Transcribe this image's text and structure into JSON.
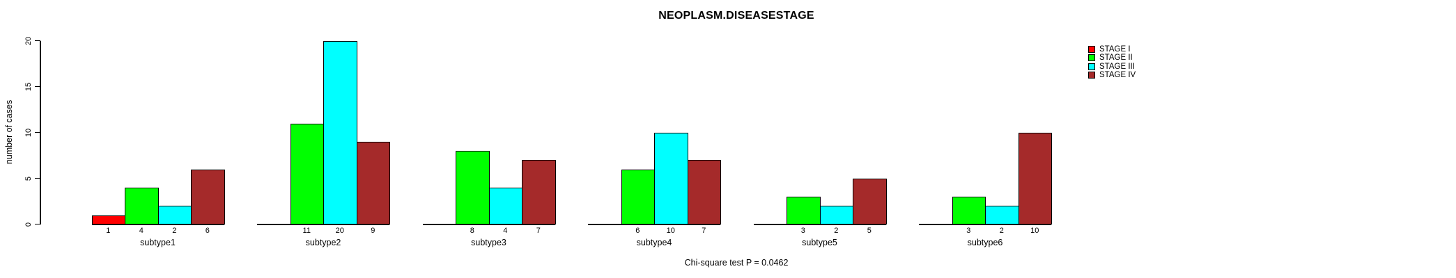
{
  "title": "NEOPLASM.DISEASESTAGE",
  "caption": "Chi-square test P = 0.0462",
  "ylabel": "number of cases",
  "legend": {
    "position": "top-right",
    "items": [
      {
        "label": "STAGE I",
        "color": "#FF0000"
      },
      {
        "label": "STAGE II",
        "color": "#00FF00"
      },
      {
        "label": "STAGE III",
        "color": "#00FFFF"
      },
      {
        "label": "STAGE IV",
        "color": "#A52A2A"
      }
    ]
  },
  "chart_data": {
    "type": "bar",
    "title": "NEOPLASM.DISEASESTAGE",
    "ylabel": "number of cases",
    "xlabel": "",
    "ylim": [
      0,
      20
    ],
    "yticks": [
      0,
      5,
      10,
      15,
      20
    ],
    "grid": false,
    "legend_position": "top-right",
    "categories": [
      "subtype1",
      "subtype2",
      "subtype3",
      "subtype4",
      "subtype5",
      "subtype6"
    ],
    "series": [
      {
        "name": "STAGE I",
        "color": "#FF0000",
        "values": [
          1,
          0,
          0,
          0,
          0,
          0
        ]
      },
      {
        "name": "STAGE II",
        "color": "#00FF00",
        "values": [
          4,
          11,
          8,
          6,
          3,
          3
        ]
      },
      {
        "name": "STAGE III",
        "color": "#00FFFF",
        "values": [
          2,
          20,
          4,
          10,
          2,
          2
        ]
      },
      {
        "name": "STAGE IV",
        "color": "#A52A2A",
        "values": [
          6,
          9,
          7,
          7,
          5,
          10
        ]
      }
    ],
    "value_label_rule": "each bar's count is printed under its bar; zero-count bars are omitted",
    "annotation": "Chi-square test P = 0.0462"
  }
}
